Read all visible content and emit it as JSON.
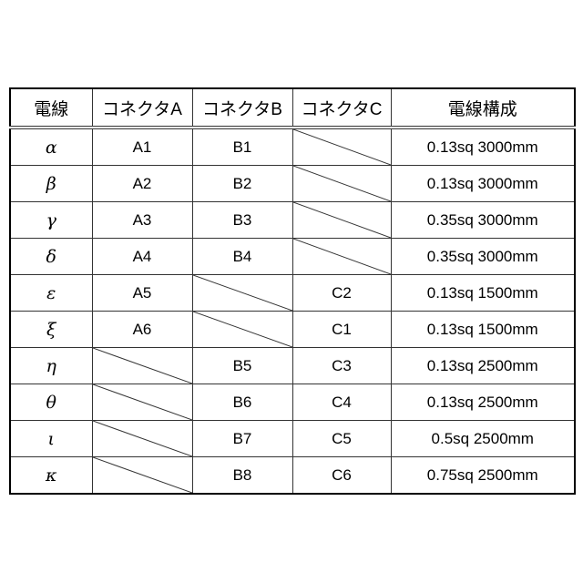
{
  "headers": [
    "電線",
    "コネクタA",
    "コネクタB",
    "コネクタC",
    "電線構成"
  ],
  "rows": [
    {
      "wire": "α",
      "a": "A1",
      "b": "B1",
      "c": "",
      "spec": "0.13sq 3000mm"
    },
    {
      "wire": "β",
      "a": "A2",
      "b": "B2",
      "c": "",
      "spec": "0.13sq 3000mm"
    },
    {
      "wire": "γ",
      "a": "A3",
      "b": "B3",
      "c": "",
      "spec": "0.35sq 3000mm"
    },
    {
      "wire": "δ",
      "a": "A4",
      "b": "B4",
      "c": "",
      "spec": "0.35sq 3000mm"
    },
    {
      "wire": "ε",
      "a": "A5",
      "b": "",
      "c": "C2",
      "spec": "0.13sq 1500mm"
    },
    {
      "wire": "ξ",
      "a": "A6",
      "b": "",
      "c": "C1",
      "spec": "0.13sq 1500mm"
    },
    {
      "wire": "η",
      "a": "",
      "b": "B5",
      "c": "C3",
      "spec": "0.13sq 2500mm"
    },
    {
      "wire": "θ",
      "a": "",
      "b": "B6",
      "c": "C4",
      "spec": "0.13sq 2500mm"
    },
    {
      "wire": "ι",
      "a": "",
      "b": "B7",
      "c": "C5",
      "spec": "0.5sq 2500mm"
    },
    {
      "wire": "κ",
      "a": "",
      "b": "B8",
      "c": "C6",
      "spec": "0.75sq 2500mm"
    }
  ]
}
